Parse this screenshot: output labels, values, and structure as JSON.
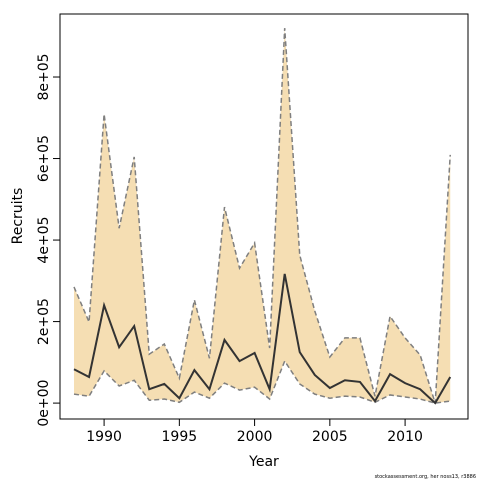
{
  "chart_data": {
    "type": "line",
    "xlabel": "Year",
    "ylabel": "Recruits",
    "footnote": "stockassessment.org, her noss13, r3886",
    "x": [
      1988,
      1989,
      1990,
      1991,
      1992,
      1993,
      1994,
      1995,
      1996,
      1997,
      1998,
      1999,
      2000,
      2001,
      2002,
      2003,
      2004,
      2005,
      2006,
      2007,
      2008,
      2009,
      2010,
      2011,
      2012,
      2013
    ],
    "series": [
      {
        "color": "#333333",
        "band_color": "#f5deb3",
        "bound_color": "#7f7f7f",
        "values": [
          83000,
          64000,
          240000,
          137000,
          189000,
          34000,
          47000,
          12000,
          81000,
          34000,
          155000,
          103000,
          123000,
          34000,
          317000,
          125000,
          69000,
          37000,
          56000,
          52000,
          5000,
          71000,
          49000,
          34000,
          0,
          64000
        ],
        "upper": [
          285000,
          199000,
          709000,
          429000,
          604000,
          120000,
          145000,
          61000,
          253000,
          110000,
          481000,
          331000,
          393000,
          135000,
          920000,
          363000,
          226000,
          113000,
          160000,
          160000,
          17000,
          213000,
          160000,
          118000,
          0,
          609000
        ],
        "lower": [
          22000,
          17000,
          79000,
          42000,
          56000,
          7000,
          10000,
          2000,
          27000,
          12000,
          49000,
          32000,
          39000,
          10000,
          103000,
          47000,
          22000,
          12000,
          17000,
          15000,
          2000,
          20000,
          15000,
          10000,
          0,
          5000
        ]
      }
    ],
    "xlim": [
      1987.07,
      2014.18
    ],
    "xticks": [
      1990,
      1995,
      2000,
      2005,
      2010
    ],
    "ylim": [
      -39000,
      954600
    ],
    "yticks": [
      {
        "value": 0,
        "label": "0e+00"
      },
      {
        "value": 200000,
        "label": "2e+05"
      },
      {
        "value": 400000,
        "label": "4e+05"
      },
      {
        "value": 600000,
        "label": "6e+05"
      },
      {
        "value": 800000,
        "label": "8e+05"
      }
    ]
  }
}
